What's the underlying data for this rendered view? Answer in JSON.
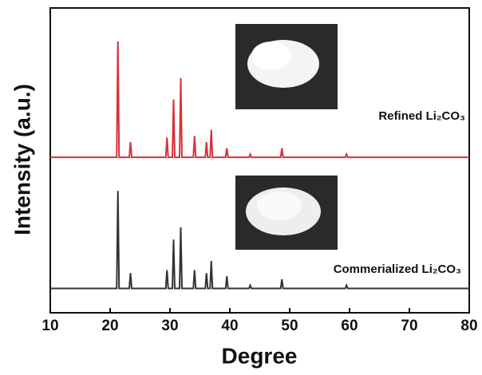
{
  "chart_data": {
    "type": "line",
    "xlabel": "Degree",
    "ylabel": "Intensity (a.u.)",
    "x": [
      10,
      21.1,
      21.3,
      21.5,
      23.2,
      23.4,
      23.6,
      29.3,
      29.5,
      29.7,
      30.4,
      30.6,
      30.8,
      31.6,
      31.8,
      32.0,
      33.9,
      34.1,
      34.3,
      35.9,
      36.1,
      36.3,
      36.7,
      36.9,
      37.1,
      39.3,
      39.5,
      39.7,
      43.2,
      43.4,
      43.6,
      48.5,
      48.7,
      48.9,
      59.3,
      59.5,
      59.7,
      80
    ],
    "series": [
      {
        "name": "Refined Li₂CO₃",
        "color": "#d9303a",
        "values": [
          51,
          51,
          89,
          51,
          51,
          56,
          51,
          51,
          57.5,
          51,
          51,
          70,
          51,
          51,
          77,
          51,
          51,
          58,
          51,
          51,
          56,
          51,
          51,
          60,
          51,
          51,
          54,
          51,
          51,
          52,
          51,
          51,
          54,
          51,
          51,
          52,
          51,
          51
        ]
      },
      {
        "name": "Commerialized Li₂CO₃",
        "color": "#333333",
        "values": [
          8,
          8,
          40,
          8,
          8,
          13,
          8,
          8,
          14,
          8,
          8,
          24,
          8,
          8,
          28,
          8,
          8,
          14,
          8,
          8,
          13,
          8,
          8,
          17,
          8,
          8,
          12,
          8,
          8,
          9,
          8,
          8,
          11,
          8,
          8,
          9,
          8,
          8
        ]
      }
    ],
    "xlim": [
      10,
      80
    ],
    "xticks": [
      10,
      20,
      30,
      40,
      50,
      60,
      70,
      80
    ],
    "ylim": [
      0,
      100
    ]
  }
}
